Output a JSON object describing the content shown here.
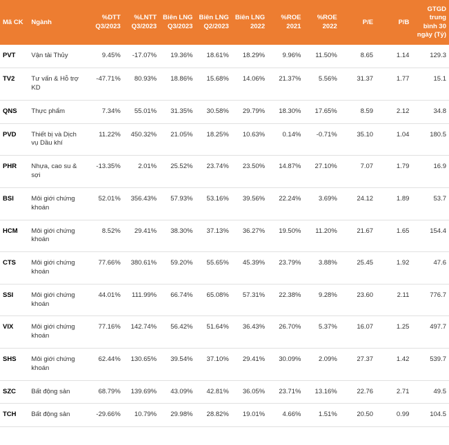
{
  "table": {
    "header_bg": "#ed7d31",
    "header_fg": "#ffffff",
    "row_border": "#e0e0e0",
    "font_size_pt": 7,
    "columns": [
      {
        "key": "code",
        "label": "Mã CK",
        "align": "left"
      },
      {
        "key": "sector",
        "label": "Ngành",
        "align": "left"
      },
      {
        "key": "dtt",
        "label": "%DTT Q3/2023",
        "align": "right"
      },
      {
        "key": "lntt",
        "label": "%LNTT Q3/2023",
        "align": "right"
      },
      {
        "key": "blng_q3",
        "label": "Biên LNG Q3/2023",
        "align": "right"
      },
      {
        "key": "blng_q2",
        "label": "Biên LNG Q2/2023",
        "align": "right"
      },
      {
        "key": "blng_2022",
        "label": "Biên LNG 2022",
        "align": "right"
      },
      {
        "key": "roe21",
        "label": "%ROE 2021",
        "align": "right"
      },
      {
        "key": "roe22",
        "label": "%ROE 2022",
        "align": "right"
      },
      {
        "key": "pe",
        "label": "P/E",
        "align": "right"
      },
      {
        "key": "pb",
        "label": "P/B",
        "align": "right"
      },
      {
        "key": "gtgd",
        "label": "GTGD trung bình 30 ngày (Tỷ)",
        "align": "right"
      }
    ],
    "rows": [
      {
        "code": "PVT",
        "sector": "Vận tải Thủy",
        "dtt": "9.45%",
        "lntt": "-17.07%",
        "blng_q3": "19.36%",
        "blng_q2": "18.61%",
        "blng_2022": "18.29%",
        "roe21": "9.96%",
        "roe22": "11.50%",
        "pe": "8.65",
        "pb": "1.14",
        "gtgd": "129.3"
      },
      {
        "code": "TV2",
        "sector": "Tư vấn & Hỗ trợ KD",
        "dtt": "-47.71%",
        "lntt": "80.93%",
        "blng_q3": "18.86%",
        "blng_q2": "15.68%",
        "blng_2022": "14.06%",
        "roe21": "21.37%",
        "roe22": "5.56%",
        "pe": "31.37",
        "pb": "1.77",
        "gtgd": "15.1"
      },
      {
        "code": "QNS",
        "sector": "Thực phẩm",
        "dtt": "7.34%",
        "lntt": "55.01%",
        "blng_q3": "31.35%",
        "blng_q2": "30.58%",
        "blng_2022": "29.79%",
        "roe21": "18.30%",
        "roe22": "17.65%",
        "pe": "8.59",
        "pb": "2.12",
        "gtgd": "34.8"
      },
      {
        "code": "PVD",
        "sector": "Thiết bị và Dịch vụ Dầu khí",
        "dtt": "11.22%",
        "lntt": "450.32%",
        "blng_q3": "21.05%",
        "blng_q2": "18.25%",
        "blng_2022": "10.63%",
        "roe21": "0.14%",
        "roe22": "-0.71%",
        "pe": "35.10",
        "pb": "1.04",
        "gtgd": "180.5"
      },
      {
        "code": "PHR",
        "sector": "Nhựa, cao su & sợi",
        "dtt": "-13.35%",
        "lntt": "2.01%",
        "blng_q3": "25.52%",
        "blng_q2": "23.74%",
        "blng_2022": "23.50%",
        "roe21": "14.87%",
        "roe22": "27.10%",
        "pe": "7.07",
        "pb": "1.79",
        "gtgd": "16.9"
      },
      {
        "code": "BSI",
        "sector": "Môi giới chứng khoán",
        "dtt": "52.01%",
        "lntt": "356.43%",
        "blng_q3": "57.93%",
        "blng_q2": "53.16%",
        "blng_2022": "39.56%",
        "roe21": "22.24%",
        "roe22": "3.69%",
        "pe": "24.12",
        "pb": "1.89",
        "gtgd": "53.7"
      },
      {
        "code": "HCM",
        "sector": "Môi giới chứng khoán",
        "dtt": "8.52%",
        "lntt": "29.41%",
        "blng_q3": "38.30%",
        "blng_q2": "37.13%",
        "blng_2022": "36.27%",
        "roe21": "19.50%",
        "roe22": "11.20%",
        "pe": "21.67",
        "pb": "1.65",
        "gtgd": "154.4"
      },
      {
        "code": "CTS",
        "sector": "Môi giới chứng khoán",
        "dtt": "77.66%",
        "lntt": "380.61%",
        "blng_q3": "59.20%",
        "blng_q2": "55.65%",
        "blng_2022": "45.39%",
        "roe21": "23.79%",
        "roe22": "3.88%",
        "pe": "25.45",
        "pb": "1.92",
        "gtgd": "47.6"
      },
      {
        "code": "SSI",
        "sector": "Môi giới chứng khoán",
        "dtt": "44.01%",
        "lntt": "111.99%",
        "blng_q3": "66.74%",
        "blng_q2": "65.08%",
        "blng_2022": "57.31%",
        "roe21": "22.38%",
        "roe22": "9.28%",
        "pe": "23.60",
        "pb": "2.11",
        "gtgd": "776.7"
      },
      {
        "code": "VIX",
        "sector": "Môi giới chứng khoán",
        "dtt": "77.16%",
        "lntt": "142.74%",
        "blng_q3": "56.42%",
        "blng_q2": "51.64%",
        "blng_2022": "36.43%",
        "roe21": "26.70%",
        "roe22": "5.37%",
        "pe": "16.07",
        "pb": "1.25",
        "gtgd": "497.7"
      },
      {
        "code": "SHS",
        "sector": "Môi giới chứng khoán",
        "dtt": "62.44%",
        "lntt": "130.65%",
        "blng_q3": "39.54%",
        "blng_q2": "37.10%",
        "blng_2022": "29.41%",
        "roe21": "30.09%",
        "roe22": "2.09%",
        "pe": "27.37",
        "pb": "1.42",
        "gtgd": "539.7"
      },
      {
        "code": "SZC",
        "sector": "Bất động sản",
        "dtt": "68.79%",
        "lntt": "139.69%",
        "blng_q3": "43.09%",
        "blng_q2": "42.81%",
        "blng_2022": "36.05%",
        "roe21": "23.71%",
        "roe22": "13.16%",
        "pe": "22.76",
        "pb": "2.71",
        "gtgd": "49.5"
      },
      {
        "code": "TCH",
        "sector": "Bất động sản",
        "dtt": "-29.66%",
        "lntt": "10.79%",
        "blng_q3": "29.98%",
        "blng_q2": "28.82%",
        "blng_2022": "19.01%",
        "roe21": "4.66%",
        "roe22": "1.51%",
        "pe": "20.50",
        "pb": "0.99",
        "gtgd": "104.5"
      }
    ]
  }
}
